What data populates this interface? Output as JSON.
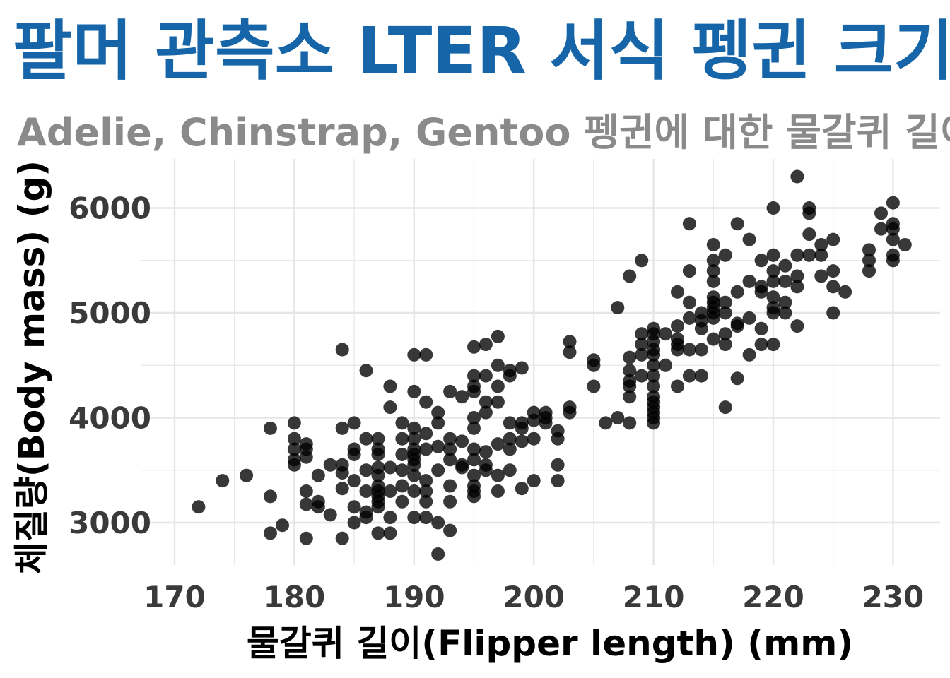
{
  "chart_data": {
    "type": "scatter",
    "title": "팔머 관측소 LTER 서식 펭귄 크기",
    "subtitle": "Adelie, Chinstrap, Gentoo 펭귄에 대한 물갈퀴 길이와 체질량",
    "xlabel": "물갈퀴 길이(Flipper length) (mm)",
    "ylabel": "체질량(Body mass) (g)",
    "xlim": [
      170,
      232
    ],
    "ylim": [
      2600,
      6400
    ],
    "xticks": [
      "170",
      "180",
      "190",
      "200",
      "210",
      "220",
      "230"
    ],
    "yticks": [
      "3000",
      "4000",
      "5000",
      "6000"
    ],
    "grid": true,
    "colors": {
      "title": "#1565a8",
      "subtitle": "#8a8a8a",
      "point": "#000000",
      "grid": "#e6e6e6",
      "tick": "#3a3a3a",
      "axis_title": "#000000"
    },
    "points": [
      [
        172,
        3150
      ],
      [
        174,
        3400
      ],
      [
        176,
        3450
      ],
      [
        178,
        3900
      ],
      [
        178,
        3250
      ],
      [
        178,
        2900
      ],
      [
        179,
        2975
      ],
      [
        180,
        3950
      ],
      [
        180,
        3800
      ],
      [
        180,
        3700
      ],
      [
        180,
        3550
      ],
      [
        180,
        3600
      ],
      [
        181,
        3750
      ],
      [
        181,
        3700
      ],
      [
        181,
        3625
      ],
      [
        181,
        3300
      ],
      [
        181,
        3175
      ],
      [
        181,
        2850
      ],
      [
        182,
        3200
      ],
      [
        182,
        3150
      ],
      [
        182,
        3450
      ],
      [
        183,
        3075
      ],
      [
        183,
        3550
      ],
      [
        184,
        4650
      ],
      [
        184,
        3900
      ],
      [
        184,
        3550
      ],
      [
        184,
        3325
      ],
      [
        184,
        3475
      ],
      [
        184,
        2850
      ],
      [
        185,
        3950
      ],
      [
        185,
        3700
      ],
      [
        185,
        3650
      ],
      [
        185,
        3400
      ],
      [
        185,
        3150
      ],
      [
        185,
        3000
      ],
      [
        186,
        4450
      ],
      [
        186,
        3800
      ],
      [
        186,
        3500
      ],
      [
        186,
        3300
      ],
      [
        186,
        3100
      ],
      [
        186,
        3050
      ],
      [
        187,
        3800
      ],
      [
        187,
        3700
      ],
      [
        187,
        3650
      ],
      [
        187,
        3525
      ],
      [
        187,
        3450
      ],
      [
        187,
        3350
      ],
      [
        187,
        3300
      ],
      [
        187,
        3250
      ],
      [
        187,
        3200
      ],
      [
        187,
        3150
      ],
      [
        187,
        2900
      ],
      [
        188,
        4300
      ],
      [
        188,
        4100
      ],
      [
        188,
        3525
      ],
      [
        188,
        3300
      ],
      [
        188,
        3050
      ],
      [
        188,
        2900
      ],
      [
        189,
        3950
      ],
      [
        189,
        3800
      ],
      [
        189,
        3650
      ],
      [
        189,
        3500
      ],
      [
        189,
        3350
      ],
      [
        189,
        3200
      ],
      [
        190,
        4600
      ],
      [
        190,
        4250
      ],
      [
        190,
        3900
      ],
      [
        190,
        3800
      ],
      [
        190,
        3700
      ],
      [
        190,
        3650
      ],
      [
        190,
        3600
      ],
      [
        190,
        3550
      ],
      [
        190,
        3450
      ],
      [
        190,
        3300
      ],
      [
        190,
        3050
      ],
      [
        191,
        4600
      ],
      [
        191,
        4150
      ],
      [
        191,
        3850
      ],
      [
        191,
        3700
      ],
      [
        191,
        3400
      ],
      [
        191,
        3300
      ],
      [
        191,
        3200
      ],
      [
        191,
        3050
      ],
      [
        192,
        4050
      ],
      [
        192,
        3950
      ],
      [
        192,
        3725
      ],
      [
        192,
        3500
      ],
      [
        192,
        3000
      ],
      [
        192,
        2700
      ],
      [
        193,
        4250
      ],
      [
        193,
        3800
      ],
      [
        193,
        3700
      ],
      [
        193,
        3600
      ],
      [
        193,
        3350
      ],
      [
        193,
        3200
      ],
      [
        193,
        2925
      ],
      [
        194,
        4200
      ],
      [
        194,
        3775
      ],
      [
        194,
        3525
      ],
      [
        194,
        3550
      ],
      [
        195,
        4675
      ],
      [
        195,
        4400
      ],
      [
        195,
        4300
      ],
      [
        195,
        4250
      ],
      [
        195,
        4000
      ],
      [
        195,
        3900
      ],
      [
        195,
        3700
      ],
      [
        195,
        3600
      ],
      [
        195,
        3450
      ],
      [
        195,
        3300
      ],
      [
        195,
        3250
      ],
      [
        195,
        3350
      ],
      [
        196,
        4700
      ],
      [
        196,
        4400
      ],
      [
        196,
        4150
      ],
      [
        196,
        4050
      ],
      [
        196,
        3675
      ],
      [
        196,
        3550
      ],
      [
        196,
        3500
      ],
      [
        197,
        4775
      ],
      [
        197,
        4500
      ],
      [
        197,
        4300
      ],
      [
        197,
        4150
      ],
      [
        197,
        3750
      ],
      [
        197,
        3450
      ],
      [
        197,
        3300
      ],
      [
        198,
        4450
      ],
      [
        198,
        4400
      ],
      [
        198,
        3950
      ],
      [
        198,
        3800
      ],
      [
        198,
        3700
      ],
      [
        198,
        3500
      ],
      [
        199,
        4475
      ],
      [
        199,
        3950
      ],
      [
        199,
        3900
      ],
      [
        199,
        3775
      ],
      [
        199,
        3325
      ],
      [
        200,
        4050
      ],
      [
        200,
        3975
      ],
      [
        200,
        3800
      ],
      [
        200,
        3400
      ],
      [
        201,
        4050
      ],
      [
        201,
        4000
      ],
      [
        201,
        3950
      ],
      [
        202,
        3875
      ],
      [
        202,
        3800
      ],
      [
        202,
        3550
      ],
      [
        202,
        3400
      ],
      [
        203,
        4725
      ],
      [
        203,
        4625
      ],
      [
        203,
        4100
      ],
      [
        203,
        4050
      ],
      [
        205,
        4550
      ],
      [
        205,
        4500
      ],
      [
        205,
        4300
      ],
      [
        206,
        3950
      ],
      [
        207,
        5050
      ],
      [
        207,
        4000
      ],
      [
        208,
        5350
      ],
      [
        208,
        4575
      ],
      [
        208,
        4450
      ],
      [
        208,
        4350
      ],
      [
        208,
        4300
      ],
      [
        208,
        4200
      ],
      [
        208,
        3950
      ],
      [
        209,
        5500
      ],
      [
        209,
        4800
      ],
      [
        209,
        4700
      ],
      [
        209,
        4600
      ],
      [
        209,
        4400
      ],
      [
        210,
        4850
      ],
      [
        210,
        4800
      ],
      [
        210,
        4725
      ],
      [
        210,
        4650
      ],
      [
        210,
        4600
      ],
      [
        210,
        4500
      ],
      [
        210,
        4400
      ],
      [
        210,
        4300
      ],
      [
        210,
        4200
      ],
      [
        210,
        4150
      ],
      [
        210,
        4100
      ],
      [
        210,
        4050
      ],
      [
        210,
        4000
      ],
      [
        210,
        3950
      ],
      [
        211,
        4800
      ],
      [
        211,
        4500
      ],
      [
        212,
        5200
      ],
      [
        212,
        4875
      ],
      [
        212,
        4750
      ],
      [
        212,
        4700
      ],
      [
        212,
        4650
      ],
      [
        212,
        4300
      ],
      [
        213,
        5850
      ],
      [
        213,
        5400
      ],
      [
        213,
        5100
      ],
      [
        213,
        4950
      ],
      [
        213,
        4650
      ],
      [
        213,
        4400
      ],
      [
        214,
        5000
      ],
      [
        214,
        4925
      ],
      [
        214,
        4850
      ],
      [
        214,
        4650
      ],
      [
        214,
        4400
      ],
      [
        215,
        5650
      ],
      [
        215,
        5500
      ],
      [
        215,
        5400
      ],
      [
        215,
        5300
      ],
      [
        215,
        5150
      ],
      [
        215,
        5100
      ],
      [
        215,
        5050
      ],
      [
        215,
        5000
      ],
      [
        215,
        4950
      ],
      [
        215,
        4750
      ],
      [
        216,
        5550
      ],
      [
        216,
        5100
      ],
      [
        216,
        5000
      ],
      [
        216,
        4800
      ],
      [
        216,
        4700
      ],
      [
        216,
        4100
      ],
      [
        217,
        5850
      ],
      [
        217,
        5200
      ],
      [
        217,
        4900
      ],
      [
        217,
        4875
      ],
      [
        217,
        4375
      ],
      [
        218,
        5700
      ],
      [
        218,
        5300
      ],
      [
        218,
        4950
      ],
      [
        218,
        4600
      ],
      [
        219,
        5500
      ],
      [
        219,
        5250
      ],
      [
        219,
        5200
      ],
      [
        219,
        4850
      ],
      [
        219,
        4700
      ],
      [
        220,
        6000
      ],
      [
        220,
        5550
      ],
      [
        220,
        5400
      ],
      [
        220,
        5300
      ],
      [
        220,
        5150
      ],
      [
        220,
        5050
      ],
      [
        220,
        5000
      ],
      [
        220,
        4700
      ],
      [
        221,
        5450
      ],
      [
        221,
        5300
      ],
      [
        221,
        5100
      ],
      [
        221,
        5000
      ],
      [
        222,
        6300
      ],
      [
        222,
        5550
      ],
      [
        222,
        5350
      ],
      [
        222,
        5250
      ],
      [
        222,
        4875
      ],
      [
        223,
        6000
      ],
      [
        223,
        5950
      ],
      [
        223,
        5750
      ],
      [
        223,
        5550
      ],
      [
        224,
        5650
      ],
      [
        224,
        5550
      ],
      [
        224,
        5350
      ],
      [
        225,
        5700
      ],
      [
        225,
        5400
      ],
      [
        225,
        5250
      ],
      [
        225,
        5000
      ],
      [
        226,
        5200
      ],
      [
        228,
        5600
      ],
      [
        228,
        5500
      ],
      [
        228,
        5400
      ],
      [
        229,
        5950
      ],
      [
        229,
        5800
      ],
      [
        230,
        6050
      ],
      [
        230,
        5850
      ],
      [
        230,
        5800
      ],
      [
        230,
        5700
      ],
      [
        230,
        5550
      ],
      [
        230,
        5500
      ],
      [
        231,
        5650
      ]
    ]
  }
}
